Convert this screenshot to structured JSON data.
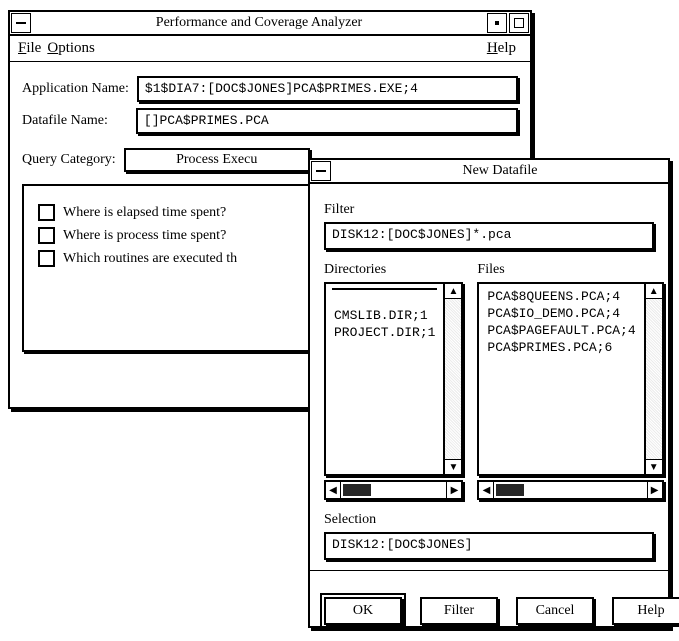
{
  "main_window": {
    "title": "Performance and Coverage Analyzer",
    "menu": {
      "file": "File",
      "options": "Options",
      "help": "Help"
    },
    "fields": {
      "app_label": "Application Name:",
      "app_value": "$1$DIA7:[DOC$JONES]PCA$PRIMES.EXE;4",
      "data_label": "Datafile Name:",
      "data_value": "[]PCA$PRIMES.PCA",
      "query_label": "Query Category:",
      "query_value": "Process Execu"
    },
    "questions": [
      "Where is elapsed time spent?",
      "Where is process time spent?",
      "Which routines are executed th"
    ]
  },
  "dialog": {
    "title": "New Datafile",
    "filter_label": "Filter",
    "filter_value": "DISK12:[DOC$JONES]*.pca",
    "dirs_label": "Directories",
    "files_label": "Files",
    "directories": [
      " ",
      "",
      "CMSLIB.DIR;1",
      "PROJECT.DIR;1"
    ],
    "files": [
      "PCA$8QUEENS.PCA;4",
      "PCA$IO_DEMO.PCA;4",
      "PCA$PAGEFAULT.PCA;4",
      "PCA$PRIMES.PCA;6"
    ],
    "selection_label": "Selection",
    "selection_value": "DISK12:[DOC$JONES]",
    "buttons": {
      "ok": "OK",
      "filter": "Filter",
      "cancel": "Cancel",
      "help": "Help"
    }
  }
}
